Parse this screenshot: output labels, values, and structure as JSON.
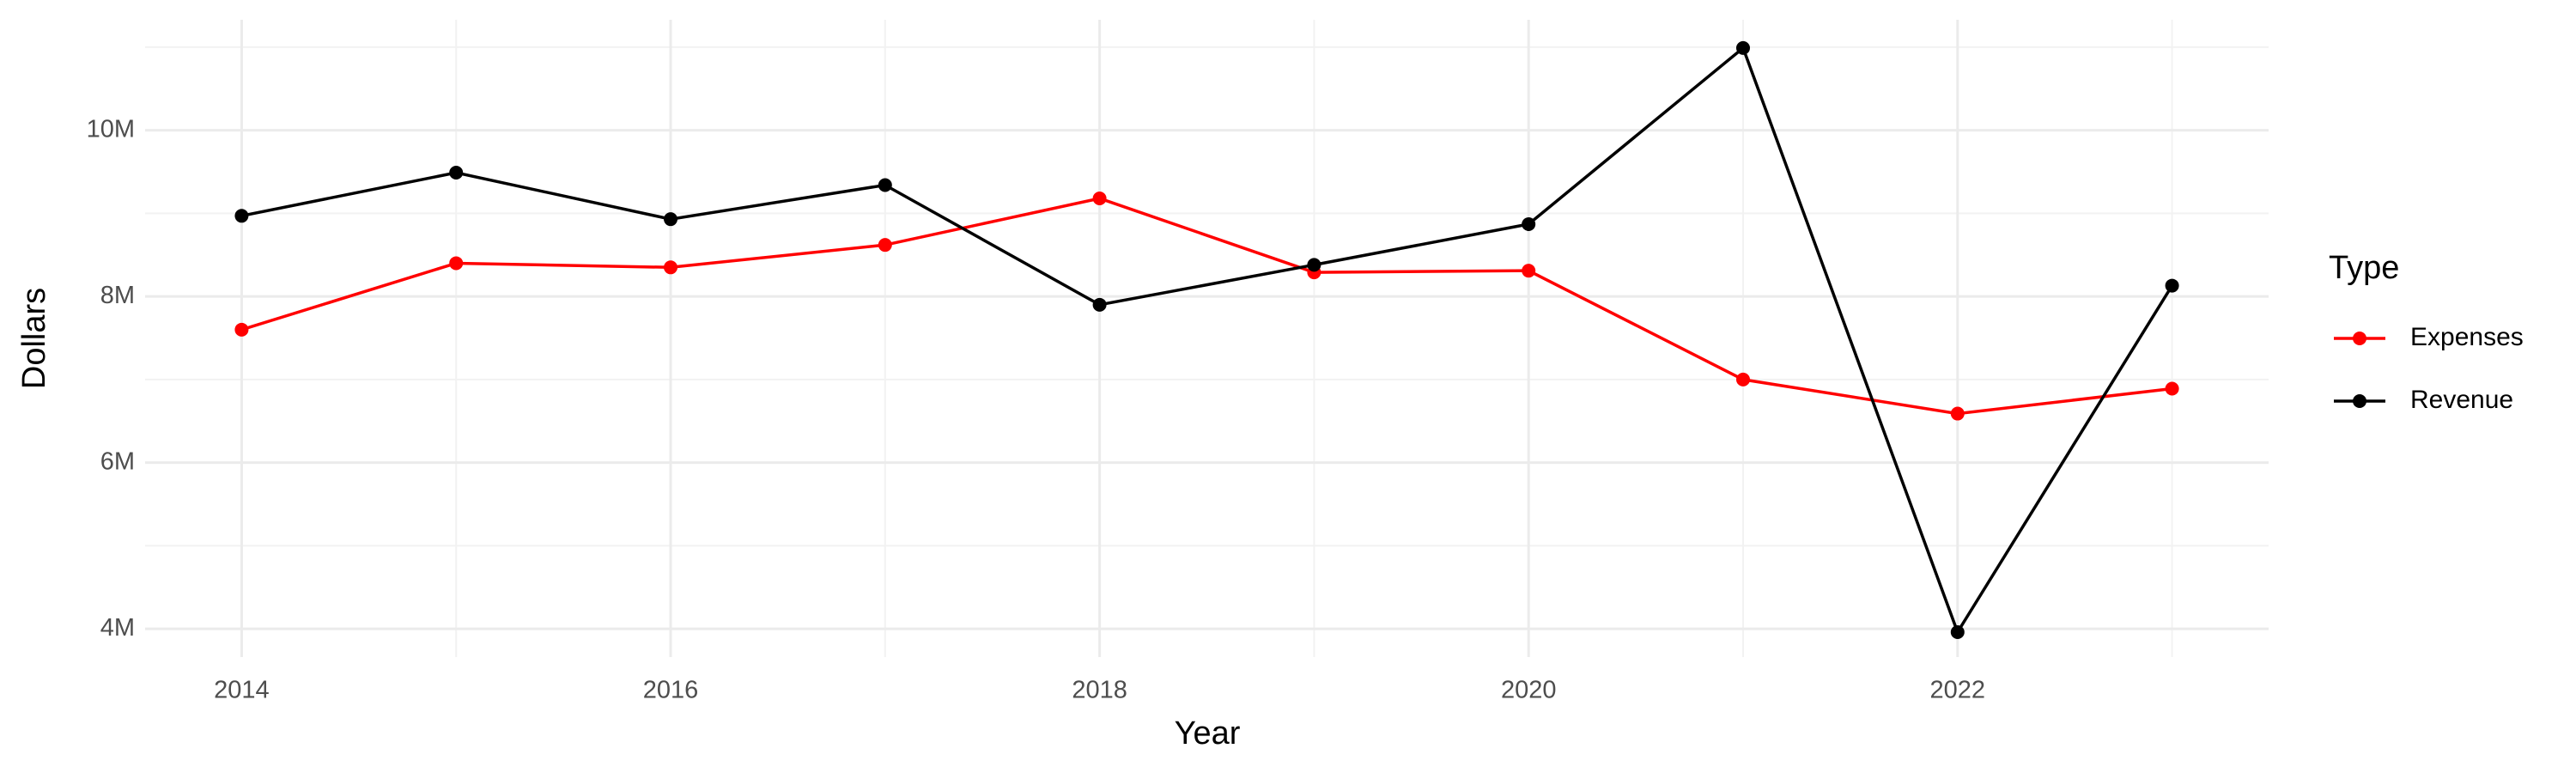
{
  "chart_data": {
    "type": "line",
    "x_label": "Year",
    "y_label": "Dollars",
    "legend_title": "Type",
    "x": [
      2014,
      2015,
      2016,
      2017,
      2018,
      2019,
      2020,
      2021,
      2022,
      2023
    ],
    "series": [
      {
        "name": "Expenses",
        "color": "#ff0000",
        "values": [
          7600000,
          8400000,
          8350000,
          8620000,
          9180000,
          8290000,
          8310000,
          7000000,
          6590000,
          6890000
        ]
      },
      {
        "name": "Revenue",
        "color": "#000000",
        "values": [
          8970000,
          9490000,
          8930000,
          9340000,
          7900000,
          8380000,
          8870000,
          10990000,
          3960000,
          8130000
        ]
      }
    ],
    "xlim": [
      2013.55,
      2023.45
    ],
    "ylim": [
      3660000,
      11330000
    ],
    "xticks": [
      2014,
      2016,
      2018,
      2020,
      2022
    ],
    "yticks": [
      {
        "value": 4000000,
        "label": "4M"
      },
      {
        "value": 6000000,
        "label": "6M"
      },
      {
        "value": 8000000,
        "label": "8M"
      },
      {
        "value": 10000000,
        "label": "10M"
      }
    ],
    "grid": true,
    "legend_position": "right"
  }
}
